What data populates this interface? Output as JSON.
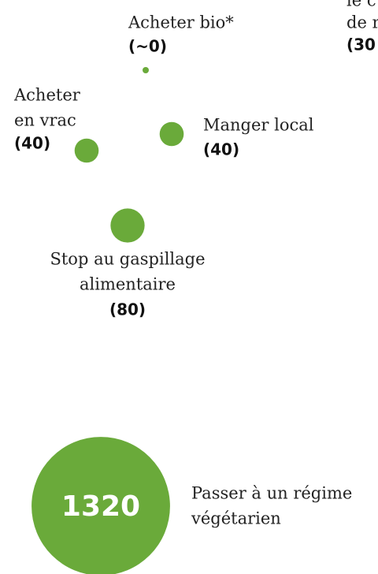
{
  "chart_data": {
    "type": "bubble",
    "color": "#6aaa3a",
    "labels": [
      [
        "Acheter bio*"
      ],
      [
        "Acheter",
        "en vrac"
      ],
      [
        "Manger local"
      ],
      [
        "Stop au gaspillage",
        "alimentaire"
      ],
      [
        "Passer à un régime",
        "végétarien"
      ]
    ],
    "values": [
      0,
      40,
      40,
      80,
      1320
    ],
    "value_labels": [
      "(~0)",
      "(40)",
      "(40)",
      "(80)",
      "1320"
    ],
    "annotations": [
      "le c",
      "de r",
      "(30"
    ]
  }
}
